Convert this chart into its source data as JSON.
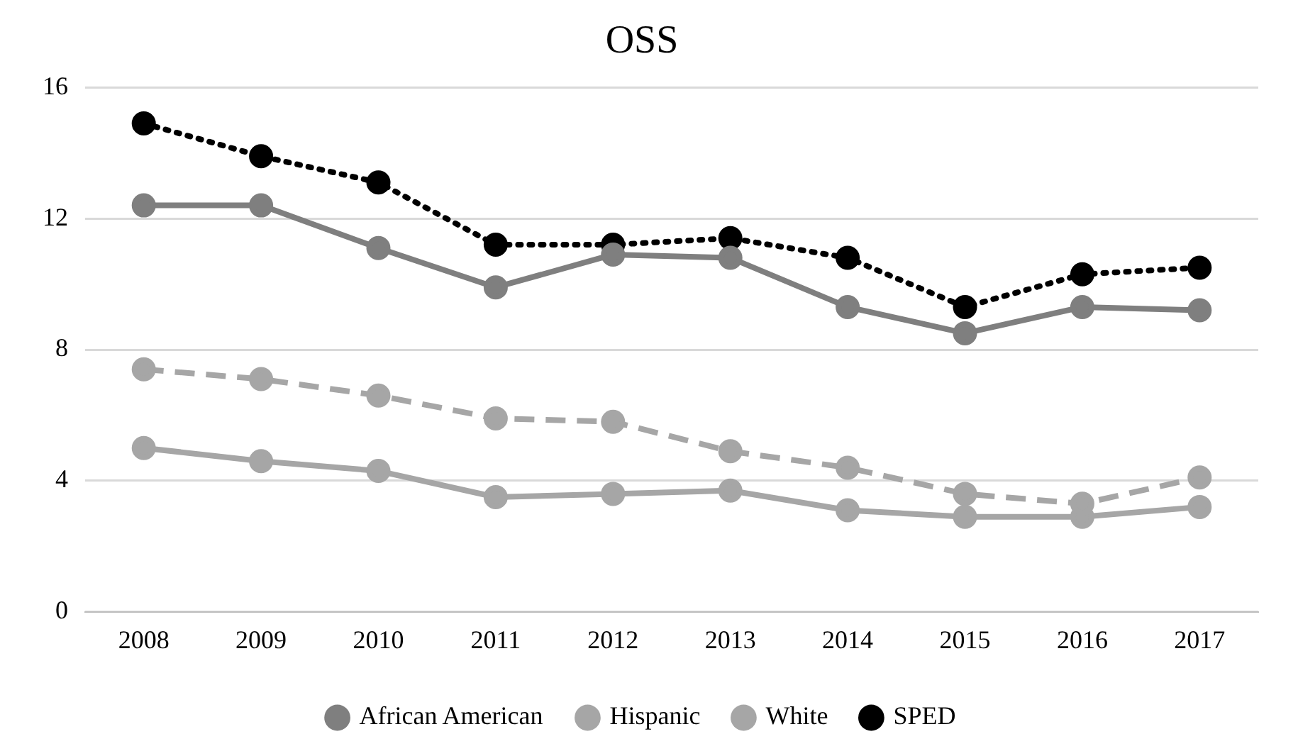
{
  "chart_data": {
    "type": "line",
    "title": "OSS",
    "categories": [
      "2008",
      "2009",
      "2010",
      "2011",
      "2012",
      "2013",
      "2014",
      "2015",
      "2016",
      "2017"
    ],
    "series": [
      {
        "name": "African American",
        "color": "#7f7f7f",
        "line_style": "solid",
        "values": [
          12.4,
          12.4,
          11.1,
          9.9,
          10.9,
          10.8,
          9.3,
          8.5,
          9.3,
          9.2
        ]
      },
      {
        "name": "Hispanic",
        "color": "#a6a6a6",
        "line_style": "dashed",
        "values": [
          7.4,
          7.1,
          6.6,
          5.9,
          5.8,
          4.9,
          4.4,
          3.6,
          3.3,
          4.1
        ]
      },
      {
        "name": "White",
        "color": "#a6a6a6",
        "line_style": "solid",
        "values": [
          5.0,
          4.6,
          4.3,
          3.5,
          3.6,
          3.7,
          3.1,
          2.9,
          2.9,
          3.2
        ]
      },
      {
        "name": "SPED",
        "color": "#000000",
        "line_style": "dotted",
        "values": [
          14.9,
          13.9,
          13.1,
          11.2,
          11.2,
          11.4,
          10.8,
          9.3,
          10.3,
          10.5
        ]
      }
    ],
    "ylim": [
      0,
      16
    ],
    "yticks": [
      0,
      4,
      8,
      12,
      16
    ],
    "grid": "y",
    "legend": "bottom",
    "marker": "circle"
  }
}
